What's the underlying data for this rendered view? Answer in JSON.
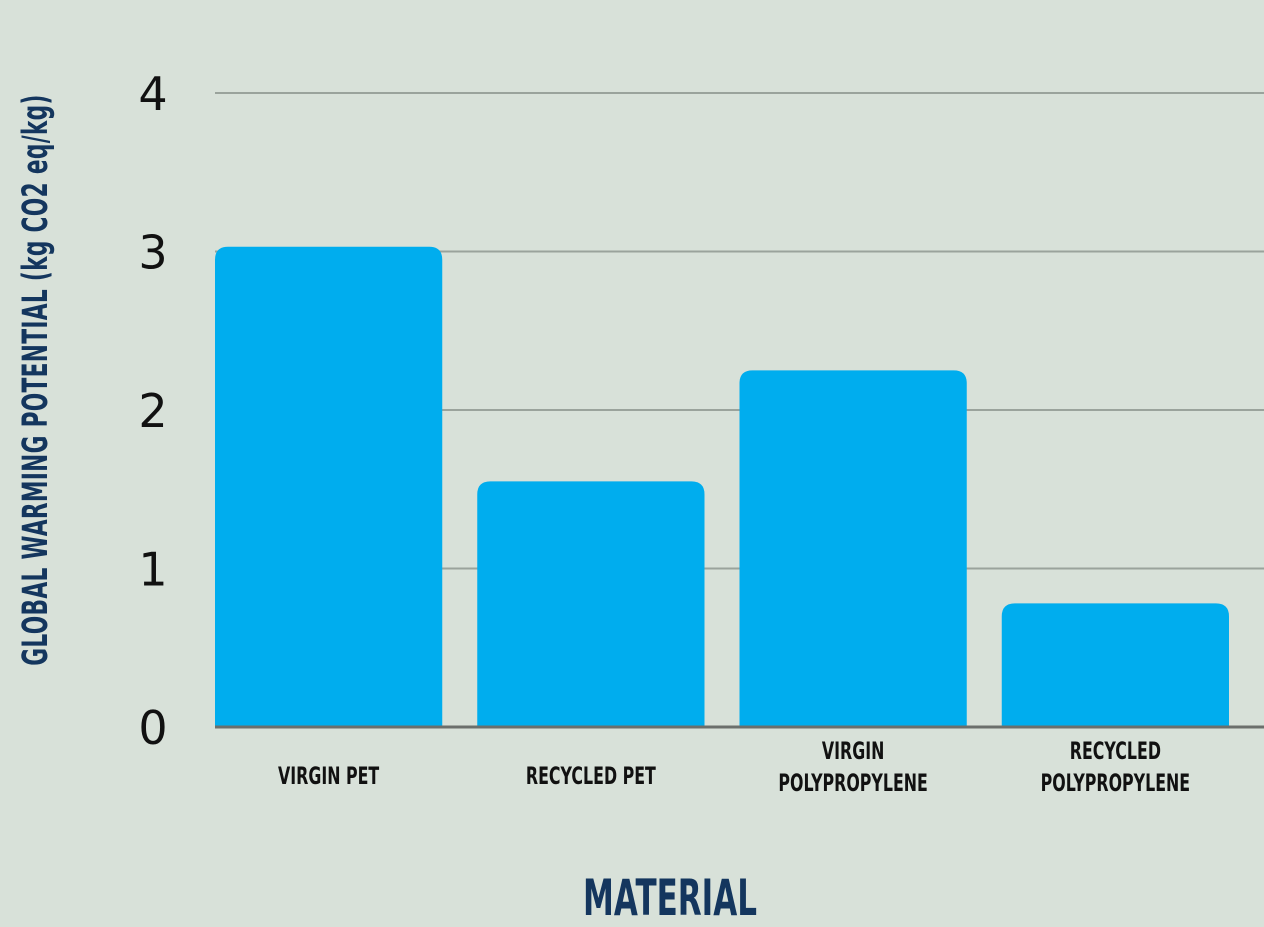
{
  "chart_data": {
    "type": "bar",
    "categories": [
      "VIRGIN PET",
      "RECYCLED PET",
      "VIRGIN POLYPROPYLENE",
      "RECYCLED POLYPROPYLENE"
    ],
    "category_lines": [
      [
        "VIRGIN PET"
      ],
      [
        "RECYCLED PET"
      ],
      [
        "VIRGIN",
        "POLYPROPYLENE"
      ],
      [
        "RECYCLED",
        "POLYPROPYLENE"
      ]
    ],
    "values": [
      3.03,
      1.55,
      2.25,
      0.78
    ],
    "title": "",
    "xlabel": "MATERIAL",
    "ylabel": "GLOBAL WARMING POTENTIAL (kg CO2 eq/kg)",
    "ylim": [
      0,
      4
    ],
    "yticks": [
      0,
      1,
      2,
      3,
      4
    ],
    "grid": true,
    "colors": {
      "bar": "#00adee",
      "grid": "#9aa39c",
      "baseline": "#6b6f6c",
      "tick_label": "#111111",
      "axis_title": "#14365e",
      "category_label": "#111111",
      "background": "#d8e1d9"
    }
  }
}
